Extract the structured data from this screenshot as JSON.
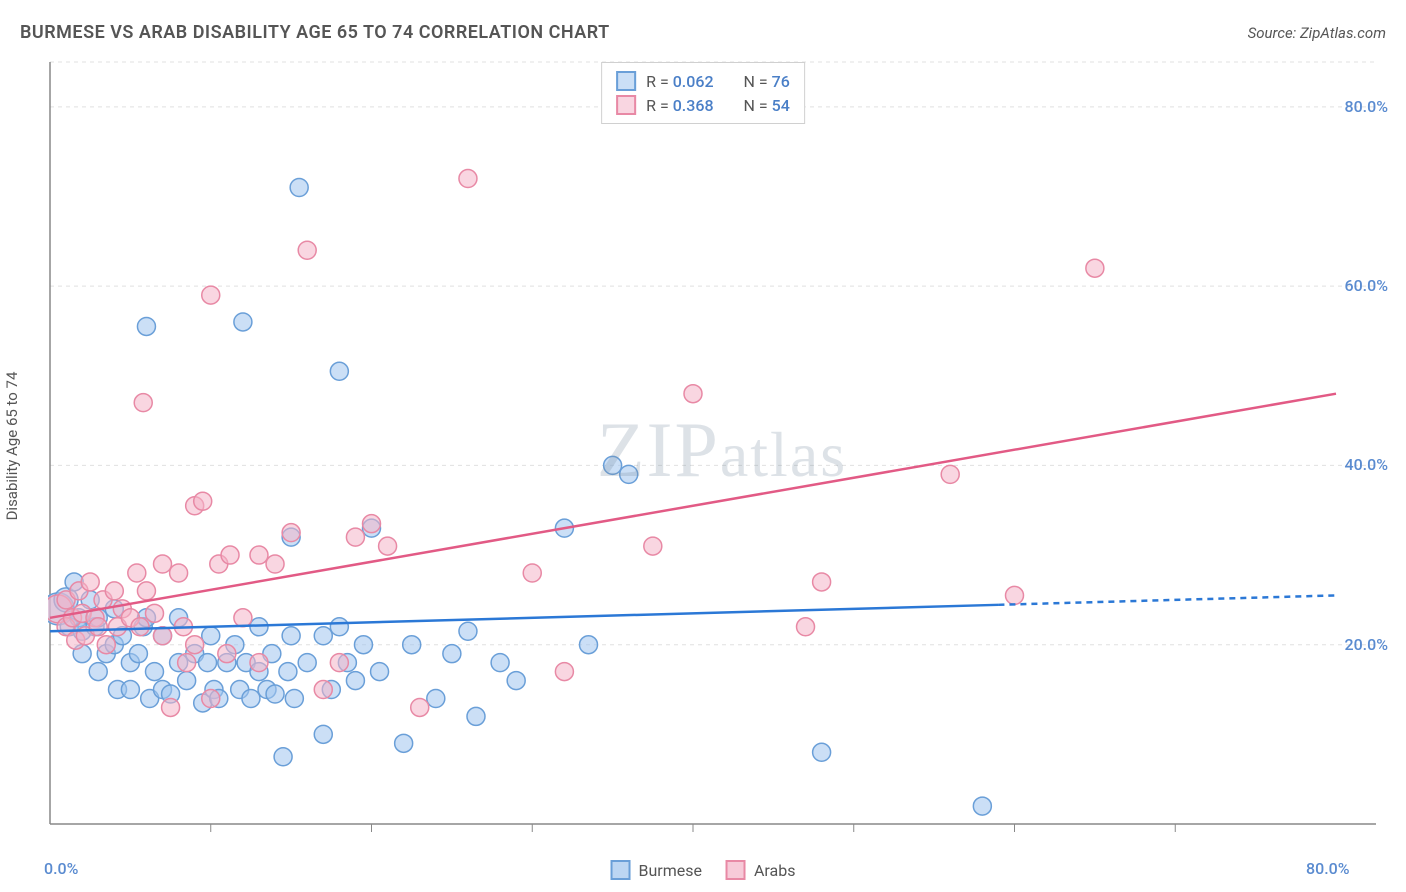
{
  "title": "BURMESE VS ARAB DISABILITY AGE 65 TO 74 CORRELATION CHART",
  "source": "Source: ZipAtlas.com",
  "y_axis_label": "Disability Age 65 to 74",
  "watermark": "ZIPatlas",
  "chart": {
    "type": "scatter",
    "xlim": [
      0,
      80
    ],
    "ylim": [
      0,
      85
    ],
    "x_ticks": [
      0,
      80
    ],
    "x_tick_labels": [
      "0.0%",
      "80.0%"
    ],
    "x_minor_ticks": [
      10,
      20,
      30,
      40,
      50,
      60,
      70
    ],
    "y_ticks": [
      20,
      40,
      60,
      80
    ],
    "y_tick_labels": [
      "20.0%",
      "40.0%",
      "60.0%",
      "80.0%"
    ],
    "grid_color": "#e0e0e0",
    "axis_color": "#888888",
    "background": "#ffffff",
    "marker_radius": 9,
    "marker_radius_large": 16,
    "marker_stroke_width": 1.5,
    "trend_line_width": 2.5,
    "series": [
      {
        "name": "Burmese",
        "fill": "rgba(160,196,238,0.55)",
        "stroke": "#6a9fd8",
        "trend_color": "#2b78d6",
        "trend": {
          "x1": 0,
          "y1": 21.5,
          "x2": 80,
          "y2": 25.5,
          "solid_end": 59,
          "dashed": true
        },
        "R": "0.062",
        "N": "76",
        "points": [
          [
            0.5,
            24,
            16
          ],
          [
            1,
            25,
            12
          ],
          [
            1.2,
            22,
            9
          ],
          [
            1.5,
            27,
            9
          ],
          [
            1.8,
            23,
            9
          ],
          [
            2,
            21.5,
            9
          ],
          [
            2,
            19,
            9
          ],
          [
            2.5,
            25,
            9
          ],
          [
            2.8,
            22,
            9
          ],
          [
            3,
            17,
            9
          ],
          [
            3,
            23,
            9
          ],
          [
            3.5,
            19,
            9
          ],
          [
            4,
            24,
            9
          ],
          [
            4,
            20,
            9
          ],
          [
            4.2,
            15,
            9
          ],
          [
            4.5,
            21,
            9
          ],
          [
            5,
            18,
            9
          ],
          [
            5,
            15,
            9
          ],
          [
            5.5,
            19,
            9
          ],
          [
            5.8,
            22,
            9
          ],
          [
            6,
            23,
            9
          ],
          [
            6,
            55.5,
            9
          ],
          [
            6.2,
            14,
            9
          ],
          [
            6.5,
            17,
            9
          ],
          [
            7,
            21,
            9
          ],
          [
            7,
            15,
            9
          ],
          [
            7.5,
            14.5,
            9
          ],
          [
            8,
            18,
            9
          ],
          [
            8,
            23,
            9
          ],
          [
            8.5,
            16,
            9
          ],
          [
            9,
            19,
            9
          ],
          [
            9.5,
            13.5,
            9
          ],
          [
            9.8,
            18,
            9
          ],
          [
            10,
            21,
            9
          ],
          [
            10.2,
            15,
            9
          ],
          [
            10.5,
            14,
            9
          ],
          [
            11,
            18,
            9
          ],
          [
            11.5,
            20,
            9
          ],
          [
            11.8,
            15,
            9
          ],
          [
            12,
            56,
            9
          ],
          [
            12.2,
            18,
            9
          ],
          [
            12.5,
            14,
            9
          ],
          [
            13,
            17,
            9
          ],
          [
            13,
            22,
            9
          ],
          [
            13.5,
            15,
            9
          ],
          [
            13.8,
            19,
            9
          ],
          [
            14,
            14.5,
            9
          ],
          [
            14.5,
            7.5,
            9
          ],
          [
            14.8,
            17,
            9
          ],
          [
            15,
            21,
            9
          ],
          [
            15,
            32,
            9
          ],
          [
            15.2,
            14,
            9
          ],
          [
            15.5,
            71,
            9
          ],
          [
            16,
            18,
            9
          ],
          [
            17,
            21,
            9
          ],
          [
            17,
            10,
            9
          ],
          [
            17.5,
            15,
            9
          ],
          [
            18,
            22,
            9
          ],
          [
            18,
            50.5,
            9
          ],
          [
            18.5,
            18,
            9
          ],
          [
            19,
            16,
            9
          ],
          [
            19.5,
            20,
            9
          ],
          [
            20,
            33,
            9
          ],
          [
            20.5,
            17,
            9
          ],
          [
            22,
            9,
            9
          ],
          [
            22.5,
            20,
            9
          ],
          [
            24,
            14,
            9
          ],
          [
            25,
            19,
            9
          ],
          [
            26,
            21.5,
            9
          ],
          [
            26.5,
            12,
            9
          ],
          [
            28,
            18,
            9
          ],
          [
            29,
            16,
            9
          ],
          [
            32,
            33,
            9
          ],
          [
            33.5,
            20,
            9
          ],
          [
            35,
            40,
            9
          ],
          [
            36,
            39,
            9
          ],
          [
            48,
            8,
            9
          ],
          [
            58,
            2,
            9
          ]
        ]
      },
      {
        "name": "Arabs",
        "fill": "rgba(244,180,200,0.55)",
        "stroke": "#e889a5",
        "trend_color": "#e25a85",
        "trend": {
          "x1": 0,
          "y1": 23,
          "x2": 80,
          "y2": 48,
          "solid_end": 80,
          "dashed": false
        },
        "R": "0.368",
        "N": "54",
        "points": [
          [
            0.5,
            24,
            14
          ],
          [
            1,
            22,
            9
          ],
          [
            1,
            25,
            9
          ],
          [
            1.4,
            23,
            9
          ],
          [
            1.6,
            20.5,
            9
          ],
          [
            1.8,
            26,
            9
          ],
          [
            2,
            23.5,
            9
          ],
          [
            2.2,
            21,
            9
          ],
          [
            2.5,
            27,
            9
          ],
          [
            2.8,
            23,
            9
          ],
          [
            3,
            22,
            9
          ],
          [
            3.3,
            25,
            9
          ],
          [
            3.5,
            20,
            9
          ],
          [
            4,
            26,
            9
          ],
          [
            4.2,
            22,
            9
          ],
          [
            4.5,
            24,
            9
          ],
          [
            5,
            23,
            9
          ],
          [
            5.4,
            28,
            9
          ],
          [
            5.6,
            22,
            9
          ],
          [
            5.8,
            47,
            9
          ],
          [
            6,
            26,
            9
          ],
          [
            6.5,
            23.5,
            9
          ],
          [
            7,
            29,
            9
          ],
          [
            7,
            21,
            9
          ],
          [
            7.5,
            13,
            9
          ],
          [
            8,
            28,
            9
          ],
          [
            8.3,
            22,
            9
          ],
          [
            8.5,
            18,
            9
          ],
          [
            9,
            35.5,
            9
          ],
          [
            9,
            20,
            9
          ],
          [
            9.5,
            36,
            9
          ],
          [
            10,
            14,
            9
          ],
          [
            10,
            59,
            9
          ],
          [
            10.5,
            29,
            9
          ],
          [
            11,
            19,
            9
          ],
          [
            11.2,
            30,
            9
          ],
          [
            12,
            23,
            9
          ],
          [
            13,
            30,
            9
          ],
          [
            13,
            18,
            9
          ],
          [
            14,
            29,
            9
          ],
          [
            15,
            32.5,
            9
          ],
          [
            16,
            64,
            9
          ],
          [
            17,
            15,
            9
          ],
          [
            18,
            18,
            9
          ],
          [
            19,
            32,
            9
          ],
          [
            20,
            33.5,
            9
          ],
          [
            21,
            31,
            9
          ],
          [
            23,
            13,
            9
          ],
          [
            26,
            72,
            9
          ],
          [
            30,
            28,
            9
          ],
          [
            32,
            17,
            9
          ],
          [
            37.5,
            31,
            9
          ],
          [
            40,
            48,
            9
          ],
          [
            47,
            22,
            9
          ],
          [
            48,
            27,
            9
          ],
          [
            56,
            39,
            9
          ],
          [
            60,
            25.5,
            9
          ],
          [
            65,
            62,
            9
          ]
        ]
      }
    ]
  },
  "legend_bottom": [
    {
      "label": "Burmese",
      "fill": "rgba(160,196,238,0.7)",
      "stroke": "#6a9fd8"
    },
    {
      "label": "Arabs",
      "fill": "rgba(244,180,200,0.7)",
      "stroke": "#e889a5"
    }
  ]
}
